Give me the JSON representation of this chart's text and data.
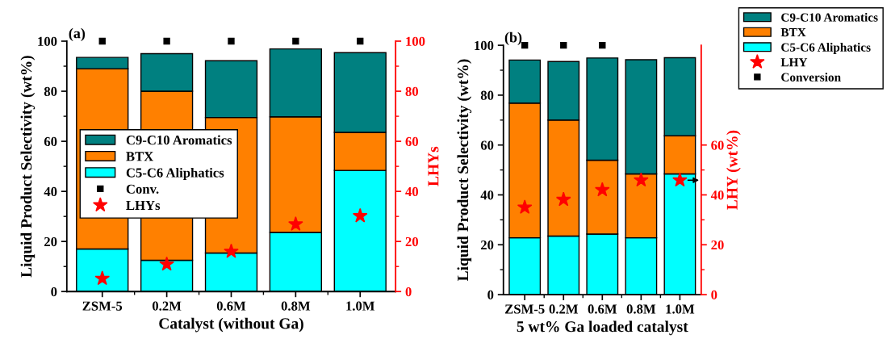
{
  "chart_data": [
    {
      "type": "bar",
      "stacked": true,
      "categories": [
        "ZSM-5",
        "0.2M",
        "0.6M",
        "0.8M",
        "1.0M"
      ],
      "xlabel": "Catalyst (without Ga)",
      "ylabel": "Liquid Product Selectivity (wt%)",
      "y2label": "LHYs",
      "ylim": [
        0,
        100
      ],
      "yticks": [
        0,
        20,
        40,
        60,
        80,
        100
      ],
      "y2lim": [
        0,
        100
      ],
      "y2ticks": [
        0,
        20,
        40,
        60,
        80,
        100
      ],
      "legend": "left",
      "annotations": [
        "(a)"
      ],
      "series": [
        {
          "name": "C5-C6 Aliphatics",
          "color": "#00ffff",
          "values": [
            17,
            12.5,
            15.4,
            23.6,
            48.4
          ]
        },
        {
          "name": "BTX",
          "color": "#ff8000",
          "values": [
            72,
            67.5,
            54.1,
            46.2,
            15.2
          ]
        },
        {
          "name": "C9-C10 Aromatics",
          "color": "#008080",
          "values": [
            4.5,
            15,
            22.7,
            27.1,
            31.8
          ]
        },
        {
          "name": "Conv.",
          "type": "scatter",
          "marker": "square",
          "color": "#000000",
          "values": [
            100,
            100,
            100,
            100,
            100
          ]
        },
        {
          "name": "LHYs",
          "type": "scatter",
          "marker": "star",
          "axis": "y2",
          "color": "#ff0000",
          "values": [
            5.2,
            10.9,
            16,
            26.9,
            30.2
          ]
        }
      ]
    },
    {
      "type": "bar",
      "stacked": true,
      "categories": [
        "ZSM-5",
        "0.2M",
        "0.6M",
        "0.8M",
        "1.0M"
      ],
      "xlabel": "5 wt% Ga loaded catalyst",
      "ylabel": "Liquid Product Selectivity (wt%)",
      "y2label": "LHY (wt%)",
      "ylim": [
        0,
        100
      ],
      "yticks": [
        0,
        20,
        40,
        60,
        80,
        100
      ],
      "y2lim": [
        0,
        100
      ],
      "y2ticks": [
        0,
        20,
        40,
        60
      ],
      "legend": "top right",
      "annotations": [
        "(b)"
      ],
      "series": [
        {
          "name": "C5-C6 Aliphatics",
          "color": "#00ffff",
          "values": [
            22.8,
            23.5,
            24.3,
            22.8,
            48.4
          ]
        },
        {
          "name": "BTX",
          "color": "#ff8000",
          "values": [
            54,
            46.5,
            29.6,
            25.6,
            15.3
          ]
        },
        {
          "name": "C9-C10 Aromatics",
          "color": "#008080",
          "values": [
            17.3,
            23.5,
            41,
            45.8,
            31.3
          ]
        },
        {
          "name": "LHY",
          "type": "scatter",
          "marker": "star",
          "axis": "y2",
          "color": "#ff0000",
          "values": [
            35,
            38.1,
            42,
            45.9,
            45.9
          ]
        },
        {
          "name": "Conversion",
          "type": "scatter",
          "marker": "square",
          "color": "#000000",
          "values": [
            100,
            100,
            100,
            null,
            null
          ]
        }
      ]
    }
  ]
}
